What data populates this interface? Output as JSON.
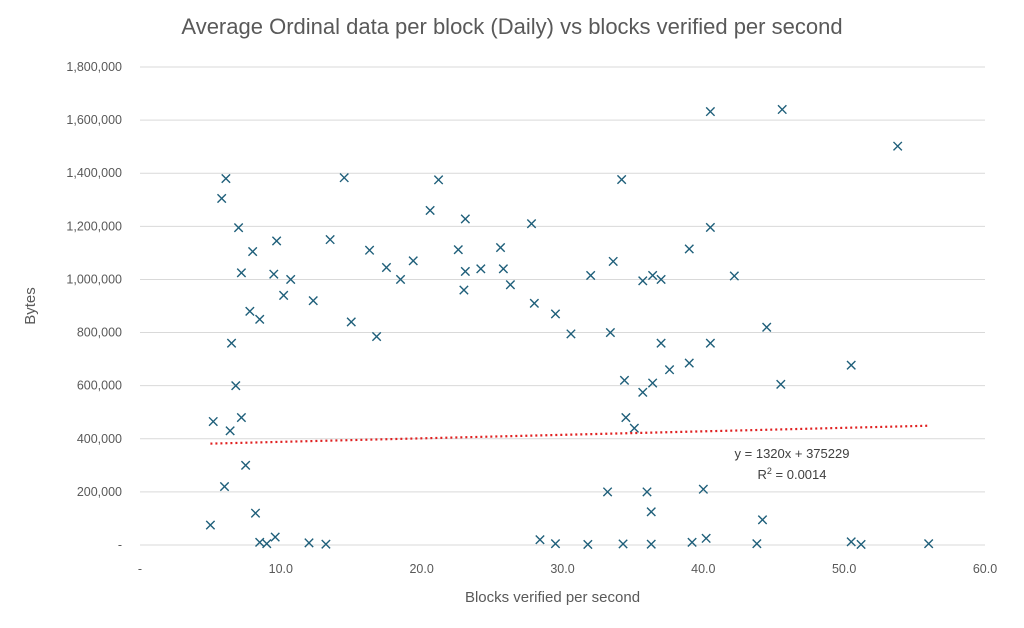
{
  "chart_data": {
    "type": "scatter",
    "title": "Average Ordinal data per block (Daily) vs blocks verified per second",
    "xlabel": "Blocks verified per second",
    "ylabel": "Bytes",
    "xlim": [
      0,
      60
    ],
    "ylim": [
      0,
      1800000
    ],
    "x_ticks": [
      "-",
      "10.0",
      "20.0",
      "30.0",
      "40.0",
      "50.0",
      "60.0"
    ],
    "y_ticks": [
      "-",
      "200,000",
      "400,000",
      "600,000",
      "800,000",
      "1,000,000",
      "1,200,000",
      "1,400,000",
      "1,600,000",
      "1,800,000"
    ],
    "grid": true,
    "marker": "x",
    "series_color": "#1f5f7a",
    "trendline": {
      "slope": 1320,
      "intercept": 375229,
      "x_range": [
        5,
        56
      ],
      "color": "#e02020",
      "equation": "y = 1320x + 375229",
      "r2_label": "R",
      "r2_exp": "2",
      "r2_value": " = 0.0014"
    },
    "points": [
      [
        6.1,
        1380000
      ],
      [
        5.8,
        1305000
      ],
      [
        7.0,
        1195000
      ],
      [
        14.5,
        1383000
      ],
      [
        21.2,
        1375000
      ],
      [
        34.2,
        1376000
      ],
      [
        40.5,
        1632000
      ],
      [
        45.6,
        1640000
      ],
      [
        53.8,
        1502000
      ],
      [
        9.7,
        1145000
      ],
      [
        13.5,
        1150000
      ],
      [
        20.6,
        1260000
      ],
      [
        23.1,
        1228000
      ],
      [
        27.8,
        1210000
      ],
      [
        40.5,
        1196000
      ],
      [
        39.0,
        1115000
      ],
      [
        42.2,
        1013000
      ],
      [
        16.3,
        1110000
      ],
      [
        22.6,
        1112000
      ],
      [
        25.6,
        1120000
      ],
      [
        32.0,
        1015000
      ],
      [
        33.6,
        1068000
      ],
      [
        36.4,
        1015000
      ],
      [
        37.0,
        1000000
      ],
      [
        35.7,
        995000
      ],
      [
        44.5,
        820000
      ],
      [
        40.5,
        760000
      ],
      [
        39.0,
        685000
      ],
      [
        50.5,
        677000
      ],
      [
        45.5,
        605000
      ],
      [
        37.6,
        660000
      ],
      [
        37.0,
        760000
      ],
      [
        33.4,
        800000
      ],
      [
        8.0,
        1105000
      ],
      [
        7.2,
        1025000
      ],
      [
        9.5,
        1020000
      ],
      [
        10.7,
        1000000
      ],
      [
        17.5,
        1045000
      ],
      [
        18.5,
        1000000
      ],
      [
        19.4,
        1070000
      ],
      [
        23.1,
        1030000
      ],
      [
        24.2,
        1040000
      ],
      [
        25.8,
        1040000
      ],
      [
        26.3,
        980000
      ],
      [
        8.5,
        850000
      ],
      [
        10.2,
        940000
      ],
      [
        12.3,
        920000
      ],
      [
        6.5,
        760000
      ],
      [
        7.8,
        880000
      ],
      [
        15.0,
        840000
      ],
      [
        16.8,
        785000
      ],
      [
        23.0,
        960000
      ],
      [
        28.0,
        910000
      ],
      [
        29.5,
        870000
      ],
      [
        30.6,
        795000
      ],
      [
        40.0,
        210000
      ],
      [
        44.2,
        95000
      ],
      [
        39.2,
        10000
      ],
      [
        40.2,
        25000
      ],
      [
        43.8,
        5000
      ],
      [
        50.5,
        12000
      ],
      [
        51.2,
        2000
      ],
      [
        56.0,
        5000
      ],
      [
        36.0,
        200000
      ],
      [
        36.3,
        125000
      ],
      [
        35.1,
        440000
      ],
      [
        35.7,
        575000
      ],
      [
        36.4,
        610000
      ],
      [
        34.4,
        620000
      ],
      [
        34.5,
        480000
      ],
      [
        33.2,
        200000
      ],
      [
        5.0,
        75000
      ],
      [
        5.2,
        465000
      ],
      [
        6.0,
        220000
      ],
      [
        6.4,
        430000
      ],
      [
        6.8,
        600000
      ],
      [
        7.2,
        480000
      ],
      [
        7.5,
        300000
      ],
      [
        8.2,
        120000
      ],
      [
        8.5,
        10000
      ],
      [
        9.0,
        5000
      ],
      [
        9.6,
        30000
      ],
      [
        12.0,
        8000
      ],
      [
        13.2,
        3000
      ],
      [
        28.4,
        20000
      ],
      [
        29.5,
        5000
      ],
      [
        31.8,
        2000
      ],
      [
        34.3,
        4000
      ],
      [
        36.3,
        3000
      ]
    ]
  }
}
